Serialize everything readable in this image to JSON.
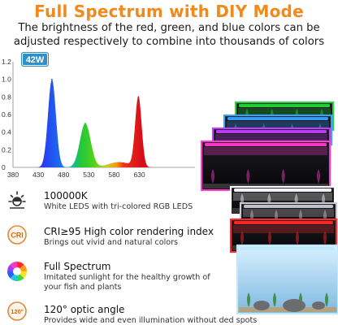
{
  "header": {
    "title": "Full Spectrum with DIY Mode",
    "subtitle_line1": "The brightness of the red, green, and blue colors can be",
    "subtitle_line2": "adjusted respectively to combine into thousands of colors"
  },
  "chart_data": {
    "type": "line",
    "badge": "42W",
    "xlabel": "",
    "ylabel": "",
    "xlim": [
      380,
      740
    ],
    "ylim": [
      0,
      1.2
    ],
    "x_ticks": [
      "380",
      "430",
      "480",
      "530",
      "580",
      "630"
    ],
    "y_ticks": [
      "1.2",
      "1.0",
      "0.8",
      "0.6",
      "0.4",
      "0.2",
      "0"
    ],
    "grid": false,
    "series": [
      {
        "color": "#2340e8",
        "peak_x": 457,
        "peak_y": 1.0
      },
      {
        "color": "#22c21c",
        "peak_x": 523,
        "peak_y": 0.5
      },
      {
        "color": "#e8161a",
        "peak_x": 628,
        "peak_y": 0.8
      }
    ]
  },
  "features": [
    {
      "icon": "sun-icon",
      "title": "100000K",
      "desc_line1": "White LEDS with tri-colored RGB LEDS",
      "desc_line2": ""
    },
    {
      "icon": "cri-icon",
      "icon_text": "CRI",
      "title": "CRI≥95  High color rendering index",
      "desc_line1": "Brings out vivid and natural colors",
      "desc_line2": ""
    },
    {
      "icon": "color-wheel-icon",
      "title": "Full Spectrum",
      "desc_line1": "Imitated sunlight for the healthy growth of",
      "desc_line2": "your fish and plants"
    },
    {
      "icon": "angle-icon",
      "icon_text": "120°",
      "title": "120° optic angle",
      "desc_line1": "Provides wide and even illumination without ded spots",
      "desc_line2": ""
    }
  ],
  "colors": {
    "accent": "#f08a1c",
    "tank_glows": [
      "#22d63a",
      "#3aa0ff",
      "#c43cff",
      "#ff3ad0",
      "#ffffff",
      "#c8c8d0",
      "#ff2a2a",
      "#bfe8ff"
    ]
  }
}
